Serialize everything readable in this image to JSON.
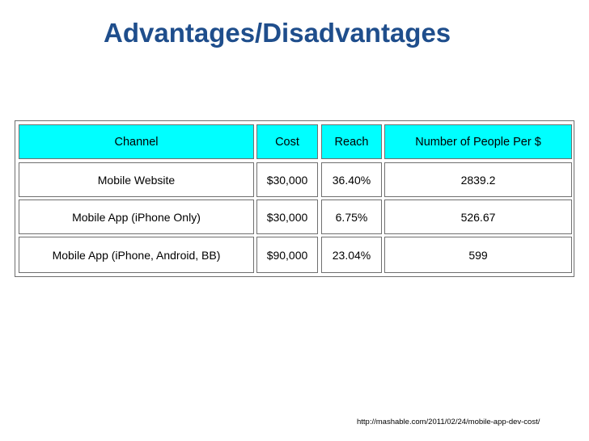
{
  "title": "Advantages/Disadvantages",
  "table": {
    "headers": [
      "Channel",
      "Cost",
      "Reach",
      "Number of People Per $"
    ],
    "rows": [
      [
        "Mobile Website",
        "$30,000",
        "36.40%",
        "2839.2"
      ],
      [
        "Mobile App (iPhone Only)",
        "$30,000",
        "6.75%",
        "526.67"
      ],
      [
        "Mobile App (iPhone, Android, BB)",
        "$90,000",
        "23.04%",
        "599"
      ]
    ]
  },
  "source": "http://mashable.com/2011/02/24/mobile-app-dev-cost/",
  "colors": {
    "title": "#1f4e8c",
    "header_fill": "#00ffff",
    "border": "#6f6f6f"
  }
}
